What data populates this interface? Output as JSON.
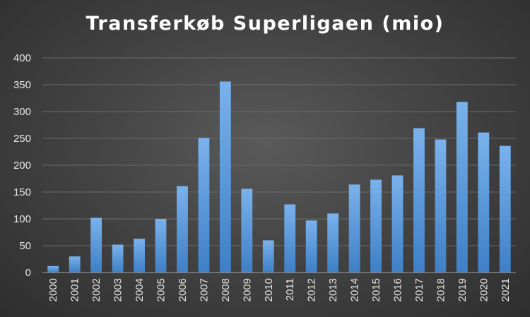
{
  "chart_data": {
    "type": "bar",
    "title": "Transferkøb Superligaen (mio)",
    "xlabel": "",
    "ylabel": "",
    "categories": [
      "2000",
      "2001",
      "2002",
      "2003",
      "2004",
      "2005",
      "2006",
      "2007",
      "2008",
      "2009",
      "2010",
      "2011",
      "2012",
      "2013",
      "2014",
      "2015",
      "2016",
      "2017",
      "2018",
      "2019",
      "2020",
      "2021"
    ],
    "values": [
      12,
      30,
      102,
      52,
      63,
      100,
      161,
      251,
      356,
      156,
      60,
      127,
      97,
      110,
      164,
      173,
      181,
      269,
      248,
      318,
      261,
      236
    ],
    "ylim": [
      0,
      400
    ],
    "yticks": [
      "0",
      "50",
      "100",
      "150",
      "200",
      "250",
      "300",
      "350",
      "400"
    ],
    "grid": true,
    "legend": "none",
    "colors": {
      "bar_top": "#7ab2ec",
      "bar_bottom": "#3e7fc6",
      "grid": "#6a6a6a",
      "axis": "#a0a0a0",
      "text": "#ffffff",
      "tick_text": "#e6e6e6"
    }
  }
}
